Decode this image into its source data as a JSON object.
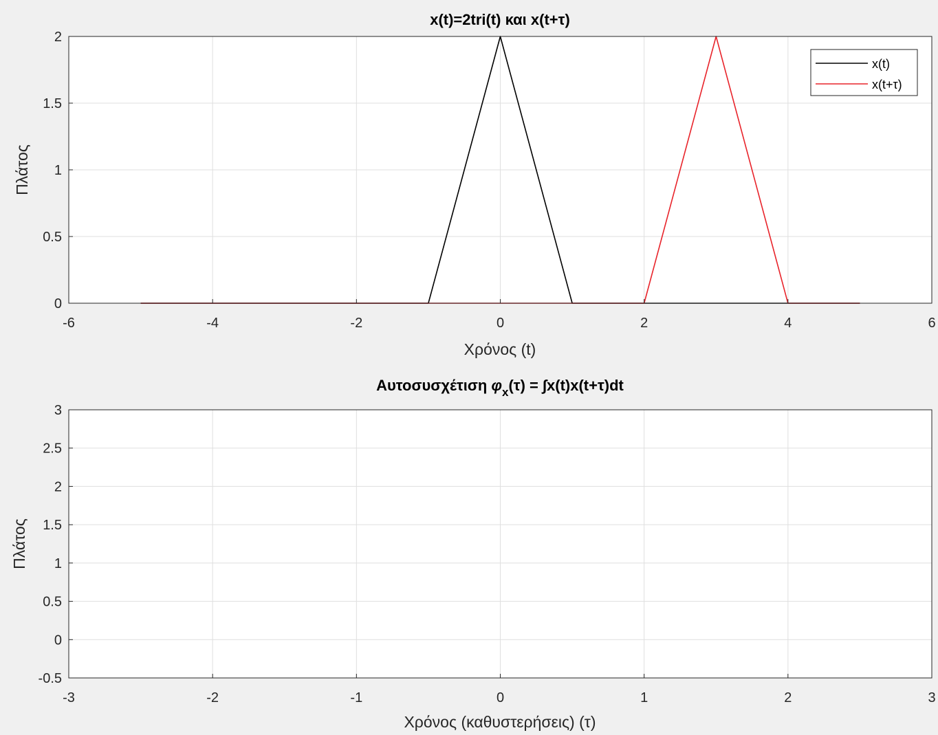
{
  "chart_data": [
    {
      "type": "line",
      "title": "x(t)=2tri(t) και x(t+τ)",
      "xlabel": "Χρόνος (t)",
      "ylabel": "Πλάτος",
      "xlim": [
        -6,
        6
      ],
      "ylim": [
        0,
        2
      ],
      "xticks": [
        -6,
        -4,
        -2,
        0,
        2,
        4,
        6
      ],
      "xtick_labels": [
        "-6",
        "-4",
        "-2",
        "0",
        "2",
        "4",
        "6"
      ],
      "yticks": [
        0,
        0.5,
        1,
        1.5,
        2
      ],
      "ytick_labels": [
        "0",
        "0.5",
        "1",
        "1.5",
        "2"
      ],
      "grid": true,
      "legend_position": "top-right",
      "series": [
        {
          "name": "x(t)",
          "color": "#000000",
          "x": [
            -5,
            -1,
            0,
            1,
            5
          ],
          "y": [
            0,
            0,
            2,
            0,
            0
          ]
        },
        {
          "name": "x(t+τ)",
          "color": "#e8232a",
          "x": [
            -5,
            2,
            3,
            4,
            5
          ],
          "y": [
            0,
            0,
            2,
            0,
            0
          ]
        }
      ]
    },
    {
      "type": "line",
      "title": "Αυτοσυσχέτιση φx(τ) = ∫x(t)x(t+τ)dt",
      "title_parts": {
        "pre": "Αυτοσυσχέτιση ",
        "phi": "φ",
        "sub": "x",
        "post": "(τ) = ∫x(t)x(t+τ)dt"
      },
      "xlabel": "Χρόνος (καθυστερήσεις) (τ)",
      "ylabel": "Πλάτος",
      "xlim": [
        -3,
        3
      ],
      "ylim": [
        -0.5,
        3
      ],
      "xticks": [
        -3,
        -2,
        -1,
        0,
        1,
        2,
        3
      ],
      "xtick_labels": [
        "-3",
        "-2",
        "-1",
        "0",
        "1",
        "2",
        "3"
      ],
      "yticks": [
        -0.5,
        0,
        0.5,
        1,
        1.5,
        2,
        2.5,
        3
      ],
      "ytick_labels": [
        "-0.5",
        "0",
        "0.5",
        "1",
        "1.5",
        "2",
        "2.5",
        "3"
      ],
      "grid": true,
      "series": []
    }
  ]
}
